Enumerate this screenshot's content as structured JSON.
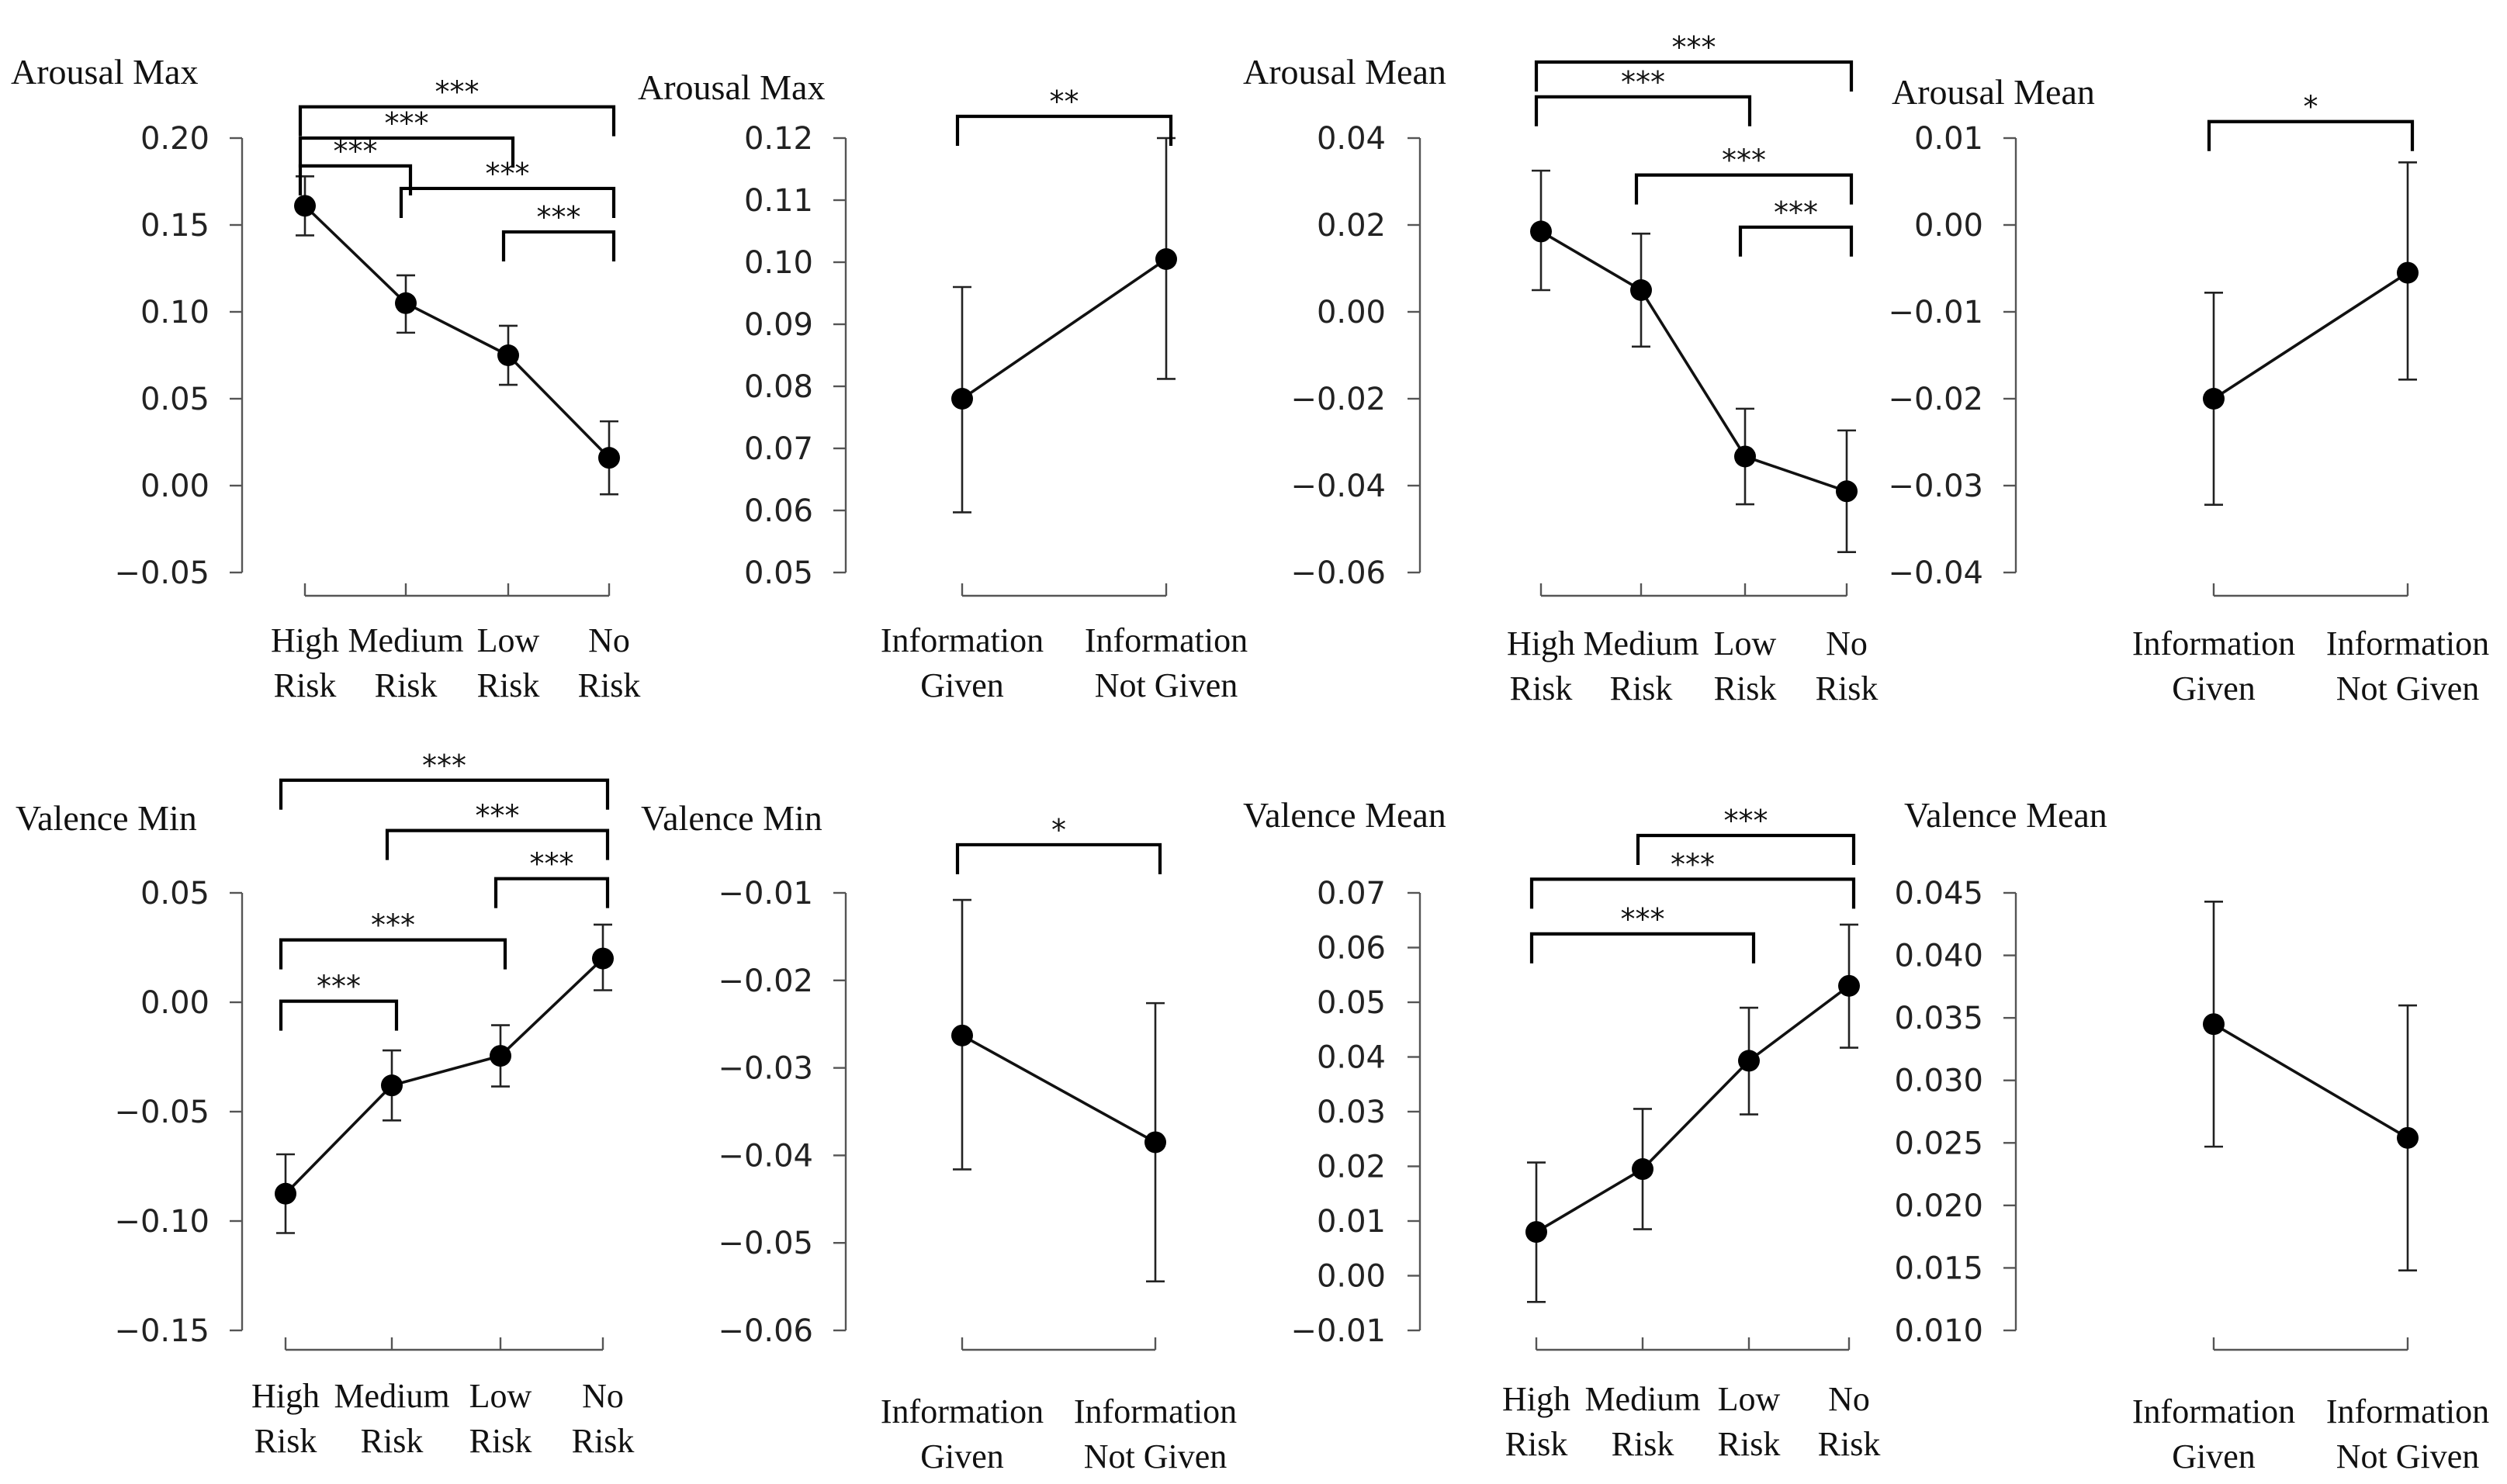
{
  "chart_data": [
    {
      "type": "line",
      "title": "Arousal Max",
      "categories": [
        [
          "High",
          "Risk"
        ],
        [
          "Medium",
          "Risk"
        ],
        [
          "Low",
          "Risk"
        ],
        [
          "No",
          "Risk"
        ]
      ],
      "ylim": [
        -0.05,
        0.2
      ],
      "yticks": [
        0.2,
        0.15,
        0.1,
        0.05,
        0.0,
        -0.05
      ],
      "yticklabels": [
        "0.20",
        "0.15",
        "0.10",
        "0.05",
        "0.00",
        "−0.05"
      ],
      "series": [
        {
          "name": "Arousal Max",
          "values": [
            0.161,
            0.105,
            0.075,
            0.016
          ],
          "err_low": [
            0.144,
            0.088,
            0.058,
            -0.005
          ],
          "err_high": [
            0.178,
            0.121,
            0.092,
            0.037
          ]
        }
      ],
      "brackets": [
        {
          "from": 0,
          "to": 3,
          "label": "***",
          "level": 0.218
        },
        {
          "from": 0,
          "to": 2,
          "label": "***",
          "level": 0.2
        },
        {
          "from": 0,
          "to": 1,
          "label": "***",
          "level": 0.184
        },
        {
          "from": 1,
          "to": 3,
          "label": "***",
          "level": 0.171
        },
        {
          "from": 2,
          "to": 3,
          "label": "***",
          "level": 0.146
        }
      ]
    },
    {
      "type": "line",
      "title": "Arousal Max",
      "categories": [
        [
          "Information",
          "Given"
        ],
        [
          "Information",
          "Not Given"
        ]
      ],
      "ylim": [
        0.05,
        0.12
      ],
      "yticks": [
        0.12,
        0.11,
        0.1,
        0.09,
        0.08,
        0.07,
        0.06,
        0.05
      ],
      "yticklabels": [
        "0.12",
        "0.11",
        "0.10",
        "0.09",
        "0.08",
        "0.07",
        "0.06",
        "0.05"
      ],
      "series": [
        {
          "name": "Arousal Max",
          "values": [
            0.078,
            0.1005
          ],
          "err_low": [
            0.0597,
            0.0812
          ],
          "err_high": [
            0.096,
            0.12
          ]
        }
      ],
      "brackets": [
        {
          "from": 0,
          "to": 1,
          "label": "**",
          "level": 0.1235
        }
      ]
    },
    {
      "type": "line",
      "title": "Arousal Mean",
      "categories": [
        [
          "High",
          "Risk"
        ],
        [
          "Medium",
          "Risk"
        ],
        [
          "Low",
          "Risk"
        ],
        [
          "No",
          "Risk"
        ]
      ],
      "ylim": [
        -0.06,
        0.04
      ],
      "yticks": [
        0.04,
        0.02,
        0.0,
        -0.02,
        -0.04,
        -0.06
      ],
      "yticklabels": [
        "0.04",
        "0.02",
        "0.00",
        "−0.02",
        "−0.04",
        "−0.06"
      ],
      "series": [
        {
          "name": "Arousal Mean",
          "values": [
            0.0185,
            0.005,
            -0.0333,
            -0.0413
          ],
          "err_low": [
            0.005,
            -0.008,
            -0.0443,
            -0.0553
          ],
          "err_high": [
            0.0325,
            0.018,
            -0.0223,
            -0.0273
          ]
        }
      ],
      "brackets": [
        {
          "from": 0,
          "to": 3,
          "label": "***",
          "level": 0.0575
        },
        {
          "from": 0,
          "to": 2,
          "label": "***",
          "level": 0.0495
        },
        {
          "from": 1,
          "to": 3,
          "label": "***",
          "level": 0.0315
        },
        {
          "from": 2,
          "to": 3,
          "label": "***",
          "level": 0.0195
        }
      ]
    },
    {
      "type": "line",
      "title": "Arousal Mean",
      "categories": [
        [
          "Information",
          "Given"
        ],
        [
          "Information",
          "Not Given"
        ]
      ],
      "ylim": [
        -0.04,
        0.01
      ],
      "yticks": [
        0.01,
        0.0,
        -0.01,
        -0.02,
        -0.03,
        -0.04
      ],
      "yticklabels": [
        "0.01",
        "0.00",
        "−0.01",
        "−0.02",
        "−0.03",
        "−0.04"
      ],
      "series": [
        {
          "name": "Arousal Mean",
          "values": [
            -0.02,
            -0.0055
          ],
          "err_low": [
            -0.0322,
            -0.0178
          ],
          "err_high": [
            -0.0078,
            0.0072
          ]
        }
      ],
      "brackets": [
        {
          "from": 0,
          "to": 1,
          "label": "*",
          "level": 0.0119
        }
      ]
    },
    {
      "type": "line",
      "title": "Valence Min",
      "categories": [
        [
          "High",
          "Risk"
        ],
        [
          "Medium",
          "Risk"
        ],
        [
          "Low",
          "Risk"
        ],
        [
          "No",
          "Risk"
        ]
      ],
      "ylim": [
        -0.15,
        0.05
      ],
      "yticks": [
        0.05,
        0.0,
        -0.05,
        -0.1,
        -0.15
      ],
      "yticklabels": [
        "0.05",
        "0.00",
        "−0.05",
        "−0.10",
        "−0.15"
      ],
      "series": [
        {
          "name": "Valence Min",
          "values": [
            -0.0875,
            -0.038,
            -0.0245,
            0.02
          ],
          "err_low": [
            -0.1055,
            -0.054,
            -0.0385,
            0.0055
          ],
          "err_high": [
            -0.0695,
            -0.022,
            -0.0105,
            0.0355
          ]
        }
      ],
      "brackets": [
        {
          "from": 0,
          "to": 3,
          "label": "***",
          "level": 0.1015
        },
        {
          "from": 1,
          "to": 3,
          "label": "***",
          "level": 0.0785
        },
        {
          "from": 2,
          "to": 3,
          "label": "***",
          "level": 0.0565
        },
        {
          "from": 0,
          "to": 2,
          "label": "***",
          "level": 0.0285
        },
        {
          "from": 0,
          "to": 1,
          "label": "***",
          "level": 0.0005
        }
      ]
    },
    {
      "type": "line",
      "title": "Valence Min",
      "categories": [
        [
          "Information",
          "Given"
        ],
        [
          "Information",
          "Not Given"
        ]
      ],
      "ylim": [
        -0.06,
        -0.01
      ],
      "yticks": [
        -0.01,
        -0.02,
        -0.03,
        -0.04,
        -0.05,
        -0.06
      ],
      "yticklabels": [
        "−0.01",
        "−0.02",
        "−0.03",
        "−0.04",
        "−0.05",
        "−0.06"
      ],
      "series": [
        {
          "name": "Valence Min",
          "values": [
            -0.0263,
            -0.0385
          ],
          "err_low": [
            -0.0416,
            -0.0544
          ],
          "err_high": [
            -0.0108,
            -0.0226
          ]
        }
      ],
      "brackets": [
        {
          "from": 0,
          "to": 1,
          "label": "*",
          "level": -0.0045
        }
      ]
    },
    {
      "type": "line",
      "title": "Valence Mean",
      "categories": [
        [
          "High",
          "Risk"
        ],
        [
          "Medium",
          "Risk"
        ],
        [
          "Low",
          "Risk"
        ],
        [
          "No",
          "Risk"
        ]
      ],
      "ylim": [
        -0.01,
        0.07
      ],
      "yticks": [
        0.07,
        0.06,
        0.05,
        0.04,
        0.03,
        0.02,
        0.01,
        0.0,
        -0.01
      ],
      "yticklabels": [
        "0.07",
        "0.06",
        "0.05",
        "0.04",
        "0.03",
        "0.02",
        "0.01",
        "0.00",
        "−0.01"
      ],
      "series": [
        {
          "name": "Valence Mean",
          "values": [
            0.008,
            0.0195,
            0.0393,
            0.053
          ],
          "err_low": [
            -0.0048,
            0.0085,
            0.0295,
            0.0417
          ],
          "err_high": [
            0.0207,
            0.0305,
            0.049,
            0.0642
          ]
        }
      ],
      "brackets": [
        {
          "from": 1,
          "to": 3,
          "label": "***",
          "level": 0.0805
        },
        {
          "from": 0,
          "to": 3,
          "label": "***",
          "level": 0.0725
        },
        {
          "from": 0,
          "to": 2,
          "label": "***",
          "level": 0.0625
        }
      ]
    },
    {
      "type": "line",
      "title": "Valence Mean",
      "categories": [
        [
          "Information",
          "Given"
        ],
        [
          "Information",
          "Not Given"
        ]
      ],
      "ylim": [
        0.01,
        0.045
      ],
      "yticks": [
        0.045,
        0.04,
        0.035,
        0.03,
        0.025,
        0.02,
        0.015,
        0.01
      ],
      "yticklabels": [
        "0.045",
        "0.040",
        "0.035",
        "0.030",
        "0.025",
        "0.020",
        "0.015",
        "0.010"
      ],
      "series": [
        {
          "name": "Valence Mean",
          "values": [
            0.0345,
            0.0254
          ],
          "err_low": [
            0.0247,
            0.0148
          ],
          "err_high": [
            0.0443,
            0.036
          ]
        }
      ],
      "brackets": []
    }
  ]
}
